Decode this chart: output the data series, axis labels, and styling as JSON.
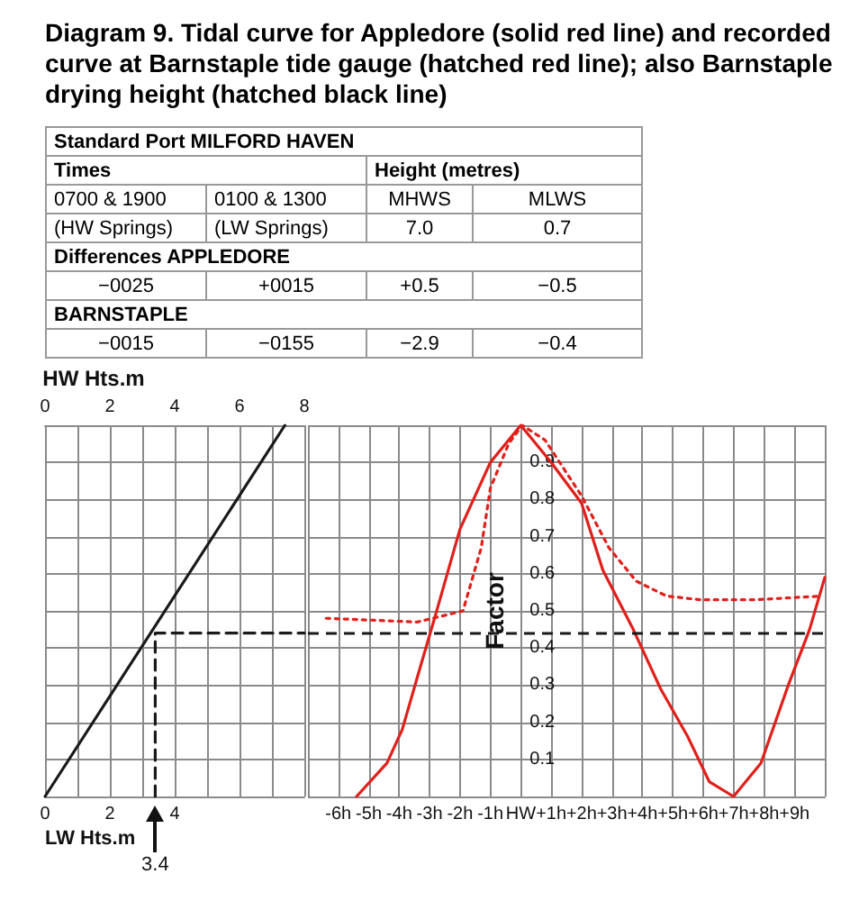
{
  "chart_data": [
    {
      "type": "other",
      "title": "Diagram 9. Tidal curve for Appledore (solid red line) and recorded curve at Barnstaple tide gauge (hatched red line); also Barnstaple drying height (hatched black line)",
      "annotations": [
        "Standard Port MILFORD HAVEN",
        "Times",
        "Height (metres)",
        "0700 & 1900",
        "0100 & 1300",
        "MHWS",
        "MLWS",
        "(HW Springs)",
        "(LW Springs)",
        "7.0",
        "0.7",
        "Differences APPLEDORE",
        "−0025",
        "+0015",
        "+0.5",
        "−0.5",
        "BARNSTAPLE",
        "−0015",
        "−0155",
        "−2.9",
        "−0.4"
      ]
    },
    {
      "type": "line",
      "xlabel": "LW Hts.m",
      "x2label": "HW Hts.m",
      "xlim": [
        0,
        8
      ],
      "xticks": [
        0,
        {
          "value": 1,
          "label": null
        },
        2,
        {
          "value": 3,
          "label": null
        },
        4,
        {
          "value": 5,
          "label": null
        },
        {
          "value": 6,
          "label": null
        },
        {
          "value": 7,
          "label": null
        },
        {
          "value": 8,
          "label": null
        }
      ],
      "x2lim": [
        0,
        8
      ],
      "x2ticks": [
        0,
        2,
        4,
        6,
        8
      ],
      "ylim": [
        0,
        1
      ],
      "yticks": [
        0,
        0.1,
        0.2,
        0.3,
        0.4,
        0.5,
        0.6,
        0.7,
        0.8,
        0.9,
        1
      ],
      "tick_labels": "x",
      "grid": true,
      "marker": "none",
      "annotations": [
        {
          "text": "3.4",
          "x": 3.4,
          "y": 0
        }
      ],
      "series": [
        {
          "color": "#1a1a1a",
          "x": [
            0,
            7.4
          ],
          "values": [
            0,
            1
          ]
        },
        {
          "color": "#1a1a1a",
          "line_style": "dashed",
          "x": [
            3.4,
            3.4,
            8
          ],
          "values": [
            0,
            0.44,
            0.44
          ]
        }
      ]
    },
    {
      "type": "line",
      "ylabel": "Factor",
      "xlim": [
        -7,
        10
      ],
      "xticks": [
        {
          "value": -7,
          "label": null
        },
        {
          "value": -6,
          "label": "-6h"
        },
        {
          "value": -5,
          "label": "-5h"
        },
        {
          "value": -4,
          "label": "-4h"
        },
        {
          "value": -3,
          "label": "-3h"
        },
        {
          "value": -2,
          "label": "-2h"
        },
        {
          "value": -1,
          "label": "-1h"
        },
        {
          "value": 0,
          "label": "HW"
        },
        {
          "value": 1,
          "label": "+1h"
        },
        {
          "value": 2,
          "label": "+2h"
        },
        {
          "value": 3,
          "label": "+3h"
        },
        {
          "value": 4,
          "label": "+4h"
        },
        {
          "value": 5,
          "label": "+5h"
        },
        {
          "value": 6,
          "label": "+6h"
        },
        {
          "value": 7,
          "label": "+7h"
        },
        {
          "value": 8,
          "label": "+8h"
        },
        {
          "value": 9,
          "label": "+9h"
        },
        {
          "value": 10,
          "label": null
        }
      ],
      "ylim": [
        0,
        1
      ],
      "yticks": [
        {
          "value": 0,
          "label": null
        },
        0.1,
        0.2,
        0.3,
        0.4,
        0.5,
        0.6,
        0.7,
        0.8,
        0.9,
        {
          "value": 1,
          "label": null
        }
      ],
      "grid": true,
      "marker": "none",
      "ref_lines": [
        {
          "axis": "y",
          "value": 0.44,
          "color": "#1a1a1a",
          "line_style": "dashed"
        }
      ],
      "series": [
        {
          "color": "#e0201b",
          "line_style": "solid",
          "x": [
            -5.4,
            -4.4,
            -3.9,
            -3.3,
            -2.8,
            -2.0,
            -1.0,
            0,
            1,
            2,
            2.7,
            3.7,
            4.6,
            5.5,
            6.2,
            7,
            7.9,
            8.8,
            9.5,
            10
          ],
          "values": [
            0,
            0.09,
            0.18,
            0.35,
            0.49,
            0.72,
            0.9,
            1.0,
            0.9,
            0.79,
            0.61,
            0.45,
            0.29,
            0.16,
            0.04,
            0,
            0.09,
            0.3,
            0.45,
            0.59
          ]
        },
        {
          "color": "#e0201b",
          "line_style": "dotted",
          "x": [
            -6.4,
            -3.4,
            -1.9,
            -1.3,
            -1.0,
            -0.4,
            0.05,
            0.8,
            2.0,
            2.9,
            3.8,
            4.8,
            5.9,
            7.7,
            9.9
          ],
          "values": [
            0.48,
            0.47,
            0.5,
            0.67,
            0.83,
            0.95,
            1.0,
            0.96,
            0.81,
            0.67,
            0.58,
            0.54,
            0.53,
            0.53,
            0.54
          ]
        }
      ]
    }
  ]
}
